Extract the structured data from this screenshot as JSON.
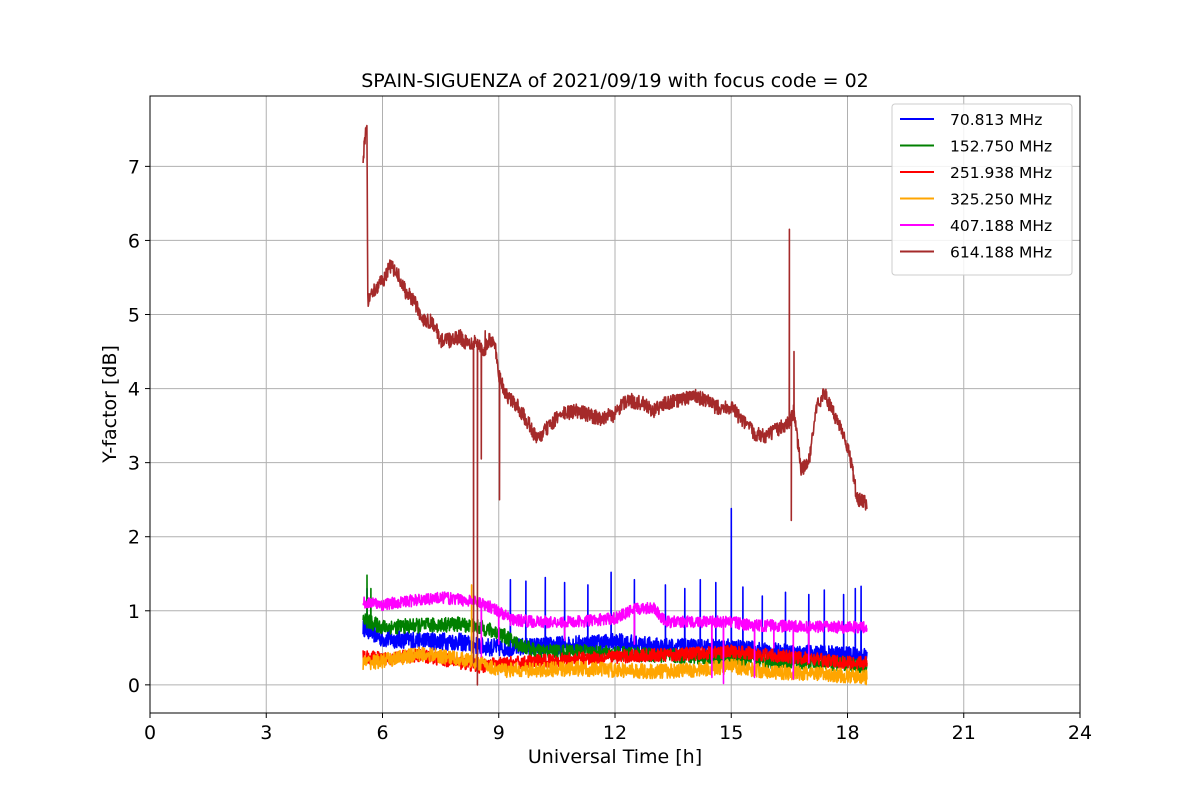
{
  "chart_data": {
    "type": "line",
    "title": "SPAIN-SIGUENZA of 2021/09/19 with focus code = 02",
    "xlabel": "Universal Time [h]",
    "ylabel": "Y-factor [dB]",
    "xlim": [
      0,
      24
    ],
    "ylim": [
      -0.38,
      7.95
    ],
    "xticks": [
      0,
      3,
      6,
      9,
      12,
      15,
      18,
      21,
      24
    ],
    "yticks": [
      0,
      1,
      2,
      3,
      4,
      5,
      6,
      7
    ],
    "grid": true,
    "legend_position": "top-right",
    "series": [
      {
        "name": " 70.813 MHz",
        "color": "#0000ff",
        "band": 0.12,
        "points": [
          [
            5.5,
            0.78
          ],
          [
            6.0,
            0.62
          ],
          [
            7.0,
            0.6
          ],
          [
            8.0,
            0.58
          ],
          [
            8.5,
            0.52
          ],
          [
            9.0,
            0.5
          ],
          [
            10.0,
            0.52
          ],
          [
            11.0,
            0.55
          ],
          [
            12.0,
            0.58
          ],
          [
            13.0,
            0.52
          ],
          [
            14.0,
            0.5
          ],
          [
            15.0,
            0.5
          ],
          [
            16.0,
            0.45
          ],
          [
            17.0,
            0.42
          ],
          [
            18.0,
            0.4
          ],
          [
            18.5,
            0.38
          ]
        ],
        "spikes": [
          [
            5.6,
            1.3
          ],
          [
            9.3,
            1.42
          ],
          [
            9.7,
            1.4
          ],
          [
            10.2,
            1.45
          ],
          [
            10.7,
            1.38
          ],
          [
            11.3,
            1.35
          ],
          [
            11.9,
            1.52
          ],
          [
            12.5,
            1.42
          ],
          [
            13.3,
            1.35
          ],
          [
            13.8,
            1.3
          ],
          [
            14.2,
            1.42
          ],
          [
            14.6,
            1.38
          ],
          [
            15.0,
            2.38
          ],
          [
            15.3,
            1.32
          ],
          [
            15.8,
            1.2
          ],
          [
            16.4,
            1.25
          ],
          [
            17.0,
            1.22
          ],
          [
            17.4,
            1.28
          ],
          [
            17.9,
            1.22
          ],
          [
            18.2,
            1.3
          ],
          [
            18.35,
            1.33
          ]
        ]
      },
      {
        "name": "152.750 MHz",
        "color": "#008000",
        "band": 0.1,
        "points": [
          [
            5.5,
            0.88
          ],
          [
            6.0,
            0.78
          ],
          [
            7.0,
            0.8
          ],
          [
            8.0,
            0.82
          ],
          [
            8.5,
            0.78
          ],
          [
            9.0,
            0.7
          ],
          [
            9.5,
            0.55
          ],
          [
            10.0,
            0.45
          ],
          [
            11.0,
            0.45
          ],
          [
            12.0,
            0.42
          ],
          [
            13.0,
            0.4
          ],
          [
            14.0,
            0.38
          ],
          [
            15.0,
            0.35
          ],
          [
            16.0,
            0.32
          ],
          [
            17.0,
            0.3
          ],
          [
            18.0,
            0.28
          ],
          [
            18.5,
            0.25
          ]
        ],
        "spikes": [
          [
            5.6,
            1.48
          ],
          [
            5.7,
            1.3
          ]
        ]
      },
      {
        "name": "251.938 MHz",
        "color": "#ff0000",
        "band": 0.09,
        "points": [
          [
            5.5,
            0.38
          ],
          [
            6.0,
            0.35
          ],
          [
            7.0,
            0.4
          ],
          [
            8.0,
            0.3
          ],
          [
            8.5,
            0.25
          ],
          [
            9.0,
            0.28
          ],
          [
            10.0,
            0.32
          ],
          [
            11.0,
            0.35
          ],
          [
            12.0,
            0.38
          ],
          [
            13.0,
            0.4
          ],
          [
            14.0,
            0.42
          ],
          [
            15.0,
            0.45
          ],
          [
            16.0,
            0.4
          ],
          [
            17.0,
            0.35
          ],
          [
            18.0,
            0.3
          ],
          [
            18.5,
            0.3
          ]
        ],
        "spikes": []
      },
      {
        "name": "325.250 MHz",
        "color": "#ffa500",
        "band": 0.1,
        "points": [
          [
            5.5,
            0.3
          ],
          [
            6.0,
            0.32
          ],
          [
            7.0,
            0.42
          ],
          [
            8.0,
            0.35
          ],
          [
            8.5,
            0.3
          ],
          [
            9.0,
            0.2
          ],
          [
            10.0,
            0.2
          ],
          [
            11.0,
            0.22
          ],
          [
            12.0,
            0.2
          ],
          [
            13.0,
            0.18
          ],
          [
            14.0,
            0.2
          ],
          [
            15.0,
            0.25
          ],
          [
            16.0,
            0.18
          ],
          [
            17.0,
            0.15
          ],
          [
            18.0,
            0.12
          ],
          [
            18.5,
            0.1
          ]
        ],
        "spikes": [
          [
            8.3,
            1.35
          ]
        ]
      },
      {
        "name": "407.188 MHz",
        "color": "#ff00ff",
        "band": 0.08,
        "points": [
          [
            5.5,
            1.12
          ],
          [
            6.0,
            1.08
          ],
          [
            6.5,
            1.12
          ],
          [
            7.0,
            1.15
          ],
          [
            7.5,
            1.18
          ],
          [
            8.0,
            1.15
          ],
          [
            8.5,
            1.12
          ],
          [
            9.0,
            1.0
          ],
          [
            9.3,
            0.88
          ],
          [
            10.0,
            0.85
          ],
          [
            11.0,
            0.85
          ],
          [
            12.0,
            0.9
          ],
          [
            12.5,
            1.02
          ],
          [
            13.0,
            1.05
          ],
          [
            13.3,
            0.85
          ],
          [
            14.0,
            0.85
          ],
          [
            15.0,
            0.85
          ],
          [
            15.5,
            0.8
          ],
          [
            16.0,
            0.8
          ],
          [
            17.0,
            0.78
          ],
          [
            18.0,
            0.78
          ],
          [
            18.5,
            0.78
          ]
        ],
        "spikes": [
          [
            8.55,
            0.38
          ],
          [
            9.0,
            0.55
          ],
          [
            10.7,
            0.6
          ],
          [
            12.5,
            0.55
          ],
          [
            14.5,
            0.1
          ],
          [
            14.8,
            0.02
          ],
          [
            15.6,
            0.1
          ],
          [
            16.1,
            0.5
          ],
          [
            16.6,
            0.08
          ],
          [
            17.0,
            0.3
          ]
        ]
      },
      {
        "name": "614.188 MHz",
        "color": "#a52a2a",
        "band": 0.1,
        "points": [
          [
            5.5,
            7.1
          ],
          [
            5.55,
            7.4
          ],
          [
            5.6,
            7.5
          ],
          [
            5.62,
            5.2
          ],
          [
            5.8,
            5.35
          ],
          [
            6.0,
            5.45
          ],
          [
            6.2,
            5.65
          ],
          [
            6.4,
            5.55
          ],
          [
            6.6,
            5.3
          ],
          [
            6.8,
            5.2
          ],
          [
            7.0,
            4.95
          ],
          [
            7.3,
            4.9
          ],
          [
            7.5,
            4.65
          ],
          [
            7.8,
            4.65
          ],
          [
            8.0,
            4.7
          ],
          [
            8.2,
            4.6
          ],
          [
            8.4,
            4.65
          ],
          [
            8.6,
            4.5
          ],
          [
            8.75,
            4.65
          ],
          [
            8.9,
            4.6
          ],
          [
            9.0,
            4.2
          ],
          [
            9.2,
            3.9
          ],
          [
            9.5,
            3.75
          ],
          [
            9.8,
            3.5
          ],
          [
            10.0,
            3.3
          ],
          [
            10.3,
            3.5
          ],
          [
            10.6,
            3.65
          ],
          [
            11.0,
            3.7
          ],
          [
            11.3,
            3.65
          ],
          [
            11.6,
            3.6
          ],
          [
            12.0,
            3.65
          ],
          [
            12.3,
            3.85
          ],
          [
            12.7,
            3.8
          ],
          [
            13.0,
            3.7
          ],
          [
            13.3,
            3.8
          ],
          [
            13.7,
            3.85
          ],
          [
            14.0,
            3.9
          ],
          [
            14.3,
            3.85
          ],
          [
            14.6,
            3.75
          ],
          [
            15.0,
            3.75
          ],
          [
            15.3,
            3.55
          ],
          [
            15.6,
            3.4
          ],
          [
            15.9,
            3.35
          ],
          [
            16.2,
            3.45
          ],
          [
            16.5,
            3.55
          ],
          [
            16.62,
            3.7
          ],
          [
            16.8,
            2.9
          ],
          [
            17.0,
            3.0
          ],
          [
            17.2,
            3.75
          ],
          [
            17.4,
            3.95
          ],
          [
            17.6,
            3.7
          ],
          [
            17.9,
            3.4
          ],
          [
            18.1,
            3.0
          ],
          [
            18.25,
            2.5
          ],
          [
            18.5,
            2.45
          ]
        ],
        "spikes": [
          [
            8.35,
            0.3
          ],
          [
            8.45,
            0.0
          ],
          [
            8.55,
            3.05
          ],
          [
            8.65,
            4.78
          ],
          [
            9.02,
            2.5
          ],
          [
            16.5,
            6.15
          ],
          [
            16.55,
            2.22
          ],
          [
            16.62,
            4.5
          ]
        ]
      }
    ]
  }
}
